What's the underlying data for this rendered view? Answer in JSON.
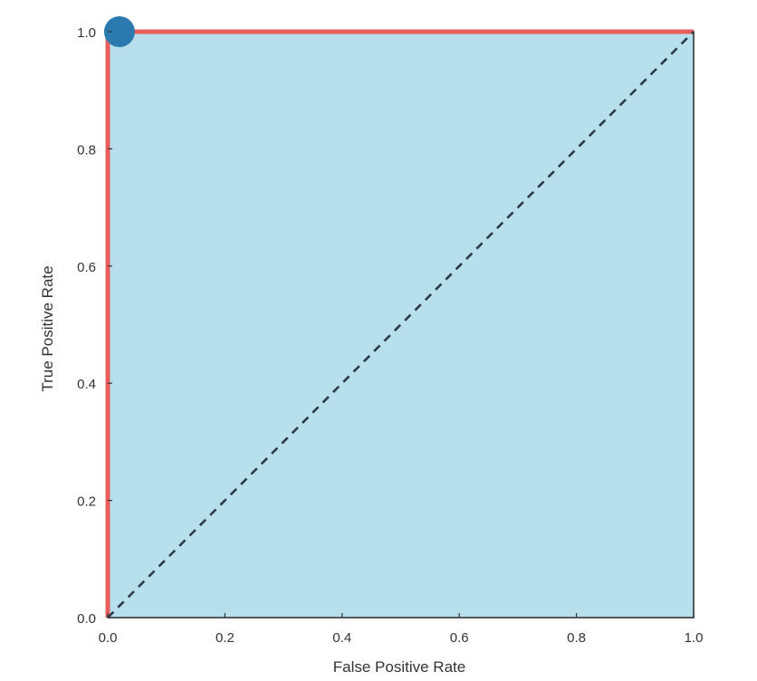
{
  "chart_data": {
    "type": "line",
    "title": "",
    "xlabel": "False Positive Rate",
    "ylabel": "True Positive Rate",
    "xlim": [
      0.0,
      1.0
    ],
    "ylim": [
      0.0,
      1.0
    ],
    "grid": false,
    "x_ticks": [
      "0.0",
      "0.2",
      "0.4",
      "0.6",
      "0.8",
      "1.0"
    ],
    "y_ticks": [
      "0.0",
      "0.2",
      "0.4",
      "0.6",
      "0.8",
      "1.0"
    ],
    "fill_under_curve": {
      "color": "#b7e0ec"
    },
    "series": [
      {
        "style": "solid",
        "color": "#e85c5c",
        "x": [
          0.0,
          0.0,
          1.0
        ],
        "y": [
          0.0,
          1.0,
          1.0
        ]
      },
      {
        "style": "dashed",
        "color": "#2b3a47",
        "x": [
          0.0,
          1.0
        ],
        "y": [
          0.0,
          1.0
        ]
      }
    ],
    "marker": {
      "color": "#2a7ab0",
      "x": 0.02,
      "y": 1.0
    }
  }
}
